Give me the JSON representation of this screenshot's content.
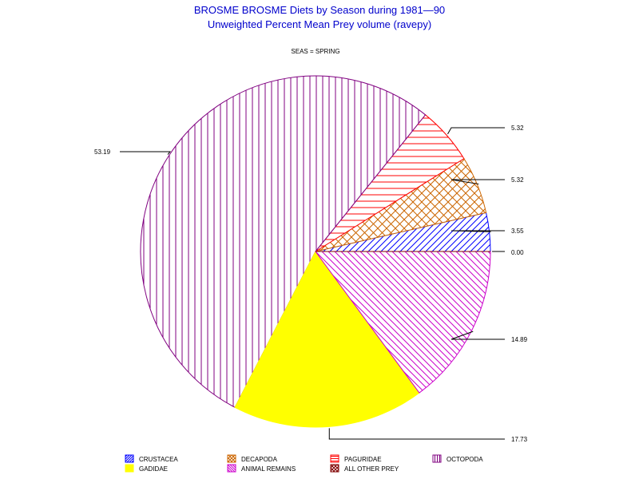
{
  "chart_data": {
    "type": "pie",
    "title": "BROSME BROSME Diets by Season during 1981—90",
    "subtitle": "Unweighted Percent Mean Prey volume (ravepy)",
    "panel_label": "SEAS = SPRING",
    "slices": [
      {
        "name": "CRUSTACEA",
        "label": "3.55",
        "value": 3.55,
        "color": "#0000ff",
        "pattern": "diag-up"
      },
      {
        "name": "DECAPODA",
        "label": "5.32",
        "value": 5.32,
        "color": "#cc6600",
        "pattern": "crosshatch"
      },
      {
        "name": "PAGURIDAE",
        "label": "5.32",
        "value": 5.32,
        "color": "#ff0000",
        "pattern": "horizontal"
      },
      {
        "name": "OCTOPODA",
        "label": "53.19",
        "value": 53.19,
        "color": "#800080",
        "pattern": "vertical"
      },
      {
        "name": "GADIDAE",
        "label": "17.73",
        "value": 17.73,
        "color": "#ffff00",
        "pattern": "solid"
      },
      {
        "name": "ANIMAL REMAINS",
        "label": "14.89",
        "value": 14.89,
        "color": "#cc00cc",
        "pattern": "diag-down"
      },
      {
        "name": "ALL OTHER PREY",
        "label": "0.00",
        "value": 0.0,
        "color": "#800000",
        "pattern": "crosshatch"
      }
    ],
    "start_angle_deg": 0,
    "direction": "counterclockwise",
    "legend_position": "bottom"
  }
}
